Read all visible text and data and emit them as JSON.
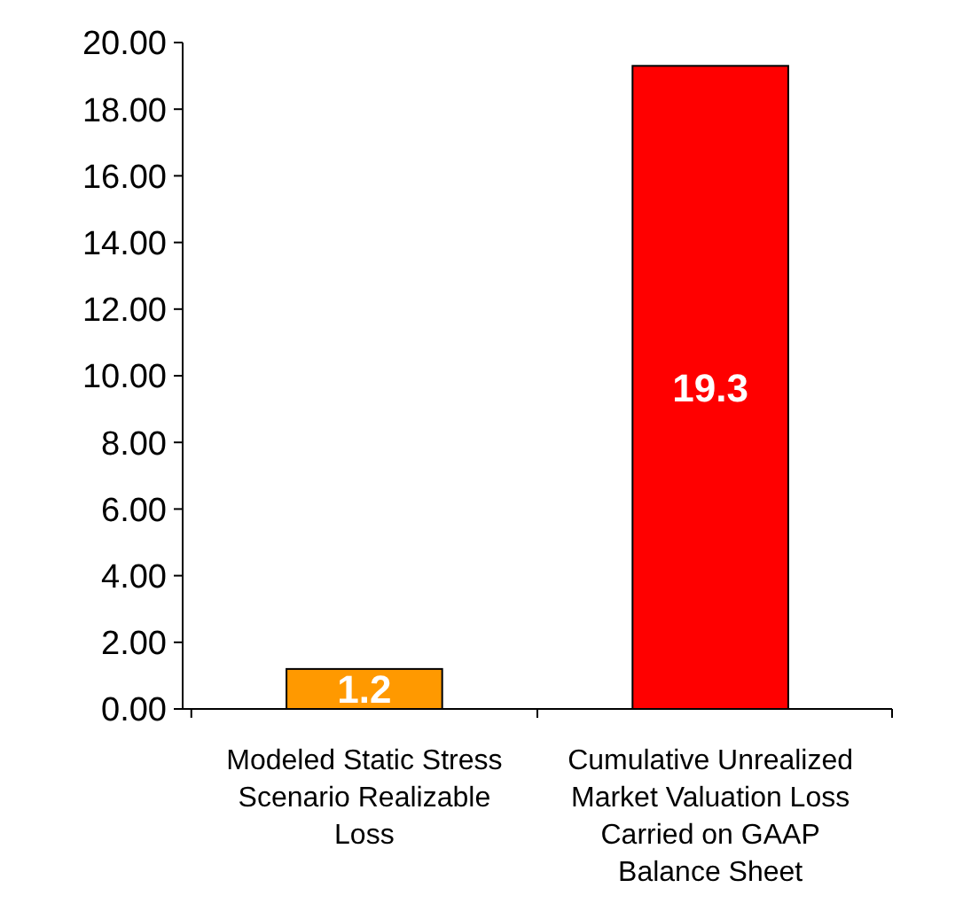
{
  "chart_data": {
    "type": "bar",
    "categories": [
      "Modeled Static Stress Scenario Realizable Loss",
      "Cumulative Unrealized Market Valuation Loss Carried on GAAP Balance Sheet"
    ],
    "values": [
      1.2,
      19.3
    ],
    "colors": [
      "#ff9900",
      "#ff0000"
    ],
    "data_labels": true,
    "ylim": [
      0,
      20
    ],
    "yticks": [
      {
        "value": 0,
        "label": "0.00"
      },
      {
        "value": 2,
        "label": "2.00"
      },
      {
        "value": 4,
        "label": "4.00"
      },
      {
        "value": 6,
        "label": "6.00"
      },
      {
        "value": 8,
        "label": "8.00"
      },
      {
        "value": 10,
        "label": "10.00"
      },
      {
        "value": 12,
        "label": "12.00"
      },
      {
        "value": 14,
        "label": "14.00"
      },
      {
        "value": 16,
        "label": "16.00"
      },
      {
        "value": 18,
        "label": "18.00"
      },
      {
        "value": 20,
        "label": "20.00"
      }
    ],
    "grid": false
  }
}
